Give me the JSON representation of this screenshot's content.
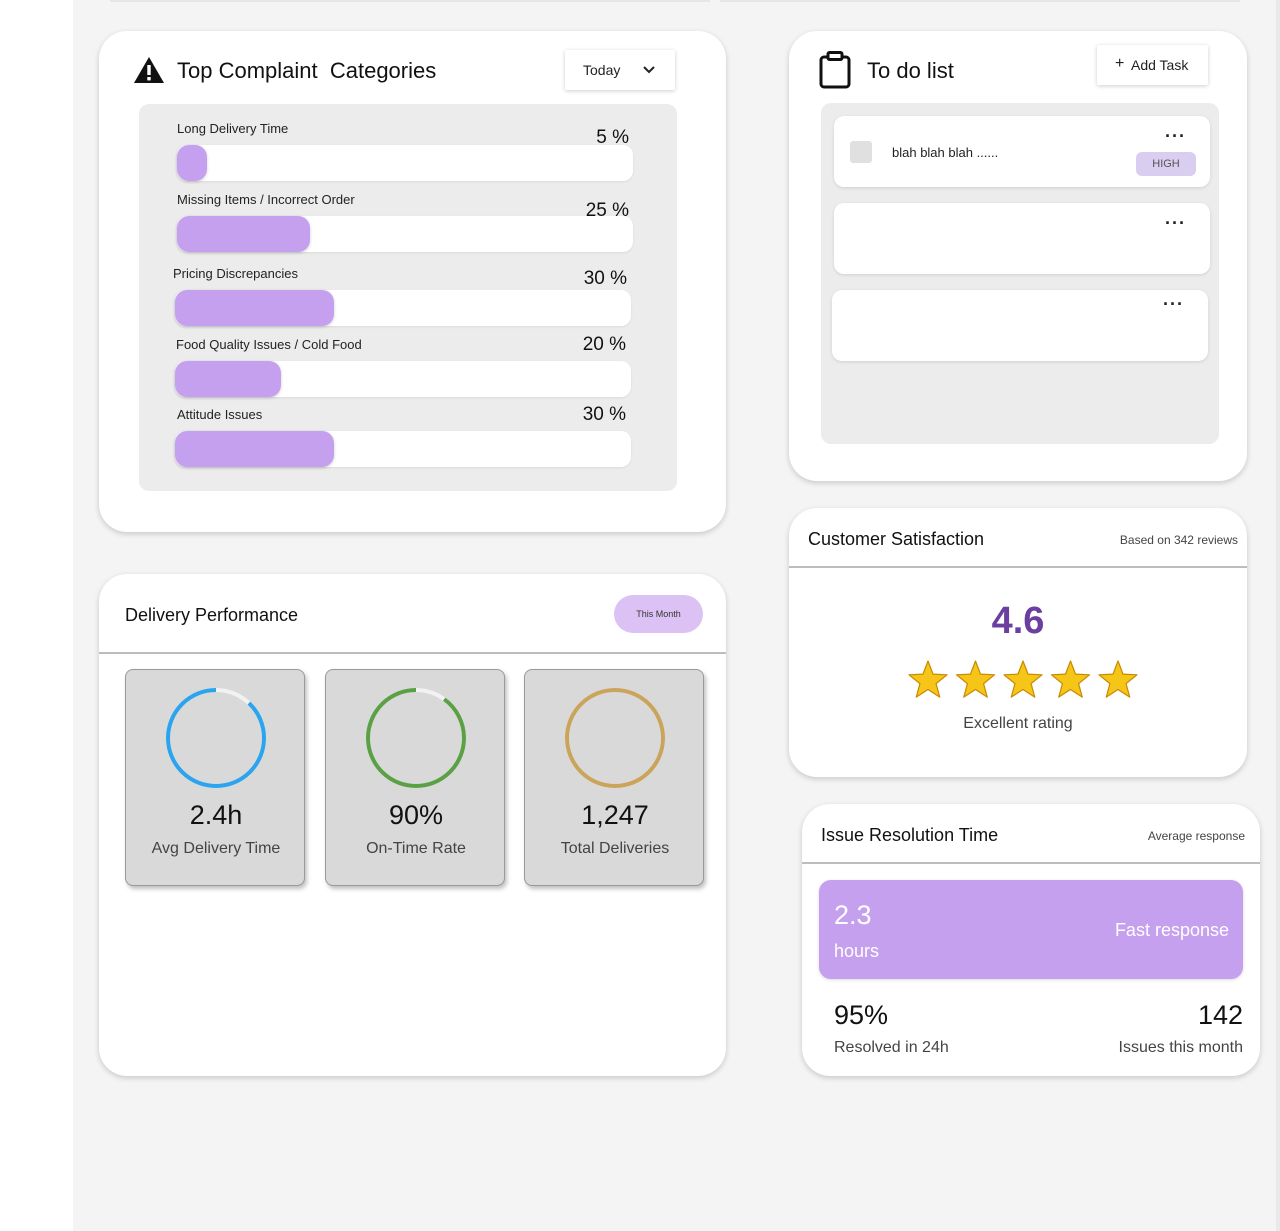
{
  "complaints": {
    "title": "Top Complaint  Categories",
    "period": "Today",
    "categories": [
      {
        "label": "Long Delivery Time",
        "percent_label": "5 %",
        "value": 5
      },
      {
        "label": "Missing Items / Incorrect Order",
        "percent_label": "25 %",
        "value": 25
      },
      {
        "label": "Pricing Discrepancies",
        "percent_label": "30 %",
        "value": 30
      },
      {
        "label": "Food Quality Issues / Cold Food",
        "percent_label": "20 %",
        "value": 20
      },
      {
        "label": "Attitude Issues",
        "percent_label": "30 %",
        "value": 30
      }
    ]
  },
  "todo": {
    "title": "To do list",
    "add_label": "Add Task",
    "add_symbol": "+",
    "more_symbol": "···",
    "tasks": [
      {
        "text": "blah blah blah ......",
        "priority": "HIGH"
      },
      {
        "text": "",
        "priority": ""
      },
      {
        "text": "",
        "priority": ""
      }
    ]
  },
  "satisfaction": {
    "title": "Customer Satisfaction",
    "subtitle": "Based on 342 reviews",
    "rating": "4.6",
    "stars": 5,
    "rating_text": "Excellent rating"
  },
  "delivery": {
    "title": "Delivery Performance",
    "period": "This Month",
    "stats": [
      {
        "value": "2.4h",
        "label": "Avg Delivery Time",
        "color": "#2aa4ec",
        "progress": 0.88
      },
      {
        "value": "90%",
        "label": "On-Time Rate",
        "color": "#5aa145",
        "progress": 0.9
      },
      {
        "value": "1,247",
        "label": "Total Deliveries",
        "color": "#c9a45a",
        "progress": 1.0
      }
    ]
  },
  "resolution": {
    "title": "Issue Resolution Time",
    "subtitle": "Average response",
    "value": "2.3",
    "unit": "hours",
    "tag": "Fast response",
    "resolved_value": "95%",
    "resolved_label": "Resolved in 24h",
    "issues_value": "142",
    "issues_label": "Issues this month"
  },
  "colors": {
    "accent_purple": "#c5a0ee",
    "rating_purple": "#6a3fa0",
    "star_gold": "#f5c518"
  }
}
